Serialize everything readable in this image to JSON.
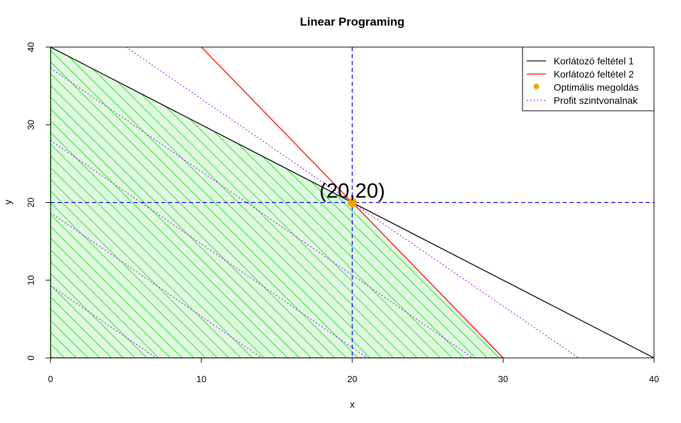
{
  "chart_data": {
    "type": "line",
    "title": "Linear Programing",
    "xlabel": "x",
    "ylabel": "y",
    "xlim": [
      0,
      40
    ],
    "ylim": [
      0,
      40
    ],
    "xticks": [
      "0",
      "10",
      "20",
      "30",
      "40"
    ],
    "yticks": [
      "0",
      "10",
      "20",
      "30",
      "40"
    ],
    "grid": false,
    "legend_position": "top-right",
    "series": [
      {
        "name": "Korlátozó feltétel 1",
        "style": "solid",
        "color": "#000000",
        "x": [
          0,
          40
        ],
        "y": [
          40,
          0
        ]
      },
      {
        "name": "Korlátozó feltétel 2",
        "style": "solid",
        "color": "#ff0000",
        "x": [
          10,
          30
        ],
        "y": [
          40,
          0
        ]
      },
      {
        "name": "Optimális megoldás",
        "style": "point",
        "color": "#f5a000",
        "x": [
          20
        ],
        "y": [
          20
        ]
      },
      {
        "name": "Profit szintvonalnak",
        "style": "dotted",
        "color": "#a020f0",
        "lines": [
          {
            "x": [
              5,
              35
            ],
            "y": [
              40,
              0
            ]
          },
          {
            "x": [
              0,
              28
            ],
            "y": [
              37.3,
              0
            ]
          },
          {
            "x": [
              0,
              21
            ],
            "y": [
              28,
              0
            ]
          },
          {
            "x": [
              0,
              14
            ],
            "y": [
              18.7,
              0
            ]
          },
          {
            "x": [
              0,
              7
            ],
            "y": [
              9.3,
              0
            ]
          }
        ]
      }
    ],
    "reference_lines": {
      "vertical_x": 20,
      "horizontal_y": 20,
      "color": "#0000ff",
      "style": "dashed"
    },
    "feasible_region": {
      "polygon": [
        [
          0,
          0
        ],
        [
          0,
          40
        ],
        [
          20,
          20
        ],
        [
          30,
          0
        ]
      ],
      "fill": "#e0f7e0",
      "hatch_color": "#00dd00"
    },
    "annotation": {
      "text": "(20,20)",
      "x": 20,
      "y": 20
    }
  }
}
